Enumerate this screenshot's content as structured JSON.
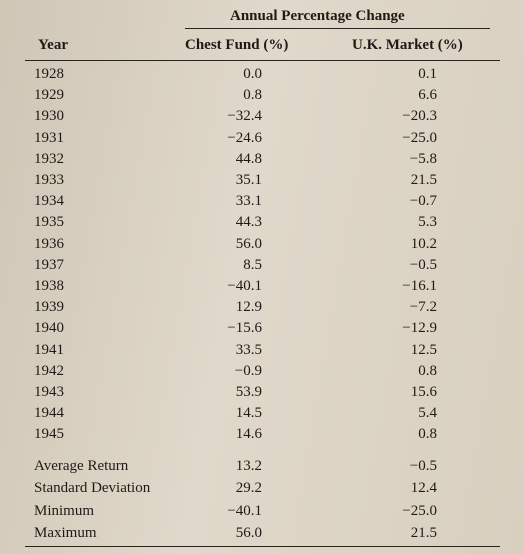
{
  "table": {
    "group_header": "Annual Percentage Change",
    "columns": [
      "Year",
      "Chest Fund (%)",
      "U.K. Market (%)"
    ],
    "rows": [
      [
        "1928",
        "0.0",
        "0.1"
      ],
      [
        "1929",
        "0.8",
        "6.6"
      ],
      [
        "1930",
        "−32.4",
        "−20.3"
      ],
      [
        "1931",
        "−24.6",
        "−25.0"
      ],
      [
        "1932",
        "44.8",
        "−5.8"
      ],
      [
        "1933",
        "35.1",
        "21.5"
      ],
      [
        "1934",
        "33.1",
        "−0.7"
      ],
      [
        "1935",
        "44.3",
        "5.3"
      ],
      [
        "1936",
        "56.0",
        "10.2"
      ],
      [
        "1937",
        "8.5",
        "−0.5"
      ],
      [
        "1938",
        "−40.1",
        "−16.1"
      ],
      [
        "1939",
        "12.9",
        "−7.2"
      ],
      [
        "1940",
        "−15.6",
        "−12.9"
      ],
      [
        "1941",
        "33.5",
        "12.5"
      ],
      [
        "1942",
        "−0.9",
        "0.8"
      ],
      [
        "1943",
        "53.9",
        "15.6"
      ],
      [
        "1944",
        "14.5",
        "5.4"
      ],
      [
        "1945",
        "14.6",
        "0.8"
      ]
    ],
    "summary": [
      [
        "Average Return",
        "13.2",
        "−0.5"
      ],
      [
        "Standard Deviation",
        "29.2",
        "12.4"
      ],
      [
        "Minimum",
        "−40.1",
        "−25.0"
      ],
      [
        "Maximum",
        "56.0",
        "21.5"
      ]
    ]
  }
}
